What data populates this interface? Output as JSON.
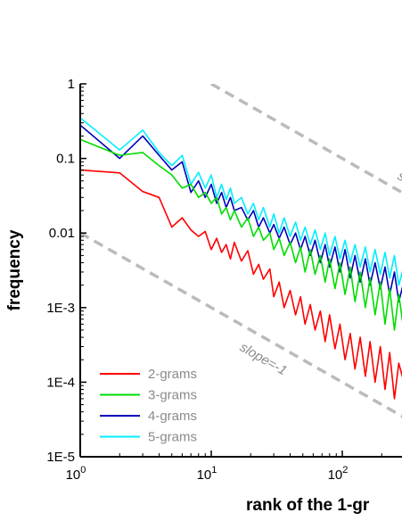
{
  "chart_data": {
    "type": "line",
    "title": "",
    "xlabel": "rank of the 1-gr",
    "ylabel": "frequency",
    "xscale": "log",
    "yscale": "log",
    "xlim": [
      1,
      330
    ],
    "ylim": [
      1e-05,
      1
    ],
    "x_ticks": [
      {
        "value": 1,
        "base": "10",
        "exp": "0"
      },
      {
        "value": 10,
        "base": "10",
        "exp": "1"
      },
      {
        "value": 100,
        "base": "10",
        "exp": "2"
      }
    ],
    "y_ticks": [
      {
        "value": 1,
        "label": "1"
      },
      {
        "value": 0.1,
        "label": "0.1"
      },
      {
        "value": 0.01,
        "label": "0.01"
      },
      {
        "value": 0.001,
        "label": "1E-3"
      },
      {
        "value": 0.0001,
        "label": "1E-4"
      },
      {
        "value": 1e-05,
        "label": "1E-5"
      }
    ],
    "grid": false,
    "legend_position": "bottom-left",
    "series": [
      {
        "name": "2-grams",
        "color": "#ff0000"
      },
      {
        "name": "3-grams",
        "color": "#00dd00"
      },
      {
        "name": "4-grams",
        "color": "#0000bb"
      },
      {
        "name": "5-grams",
        "color": "#00eeff"
      }
    ],
    "reference_lines": [
      {
        "label": "slope=-1",
        "slope": -1,
        "points": [
          [
            1,
            0.01
          ],
          [
            330,
            3.03e-05
          ]
        ],
        "color": "#bbbbbb",
        "style": "dashed"
      },
      {
        "label": "s",
        "slope": -1,
        "points": [
          [
            10,
            1
          ],
          [
            330,
            0.0303
          ]
        ],
        "color": "#bbbbbb",
        "style": "dashed"
      }
    ],
    "series_points": {
      "2-grams": [
        [
          1,
          0.07
        ],
        [
          2,
          0.064
        ],
        [
          3,
          0.036
        ],
        [
          4,
          0.03
        ],
        [
          5,
          0.012
        ],
        [
          6,
          0.016
        ],
        [
          7,
          0.011
        ],
        [
          8,
          0.009
        ],
        [
          9,
          0.0105
        ],
        [
          10,
          0.006
        ],
        [
          11,
          0.0085
        ],
        [
          12,
          0.0055
        ],
        [
          13,
          0.007
        ],
        [
          14,
          0.0045
        ],
        [
          15,
          0.0075
        ],
        [
          17,
          0.0042
        ],
        [
          19,
          0.0058
        ],
        [
          21,
          0.0028
        ],
        [
          23,
          0.0038
        ],
        [
          25,
          0.0024
        ],
        [
          28,
          0.0033
        ],
        [
          30,
          0.0014
        ],
        [
          33,
          0.0022
        ],
        [
          36,
          0.001
        ],
        [
          40,
          0.0017
        ],
        [
          44,
          0.0008
        ],
        [
          48,
          0.0014
        ],
        [
          52,
          0.0006
        ],
        [
          57,
          0.0011
        ],
        [
          62,
          0.0005
        ],
        [
          68,
          0.0009
        ],
        [
          74,
          0.00035
        ],
        [
          80,
          0.0008
        ],
        [
          88,
          0.00028
        ],
        [
          96,
          0.0006
        ],
        [
          105,
          0.0002
        ],
        [
          115,
          0.00045
        ],
        [
          125,
          0.00015
        ],
        [
          137,
          0.0004
        ],
        [
          150,
          0.00012
        ],
        [
          163,
          0.00035
        ],
        [
          178,
          0.0001
        ],
        [
          195,
          0.0003
        ],
        [
          212,
          8e-05
        ],
        [
          230,
          0.00025
        ],
        [
          250,
          6e-05
        ],
        [
          270,
          0.00018
        ],
        [
          300,
          9e-05
        ],
        [
          330,
          0.00015
        ]
      ],
      "3-grams": [
        [
          1,
          0.18
        ],
        [
          2,
          0.11
        ],
        [
          3,
          0.12
        ],
        [
          4,
          0.08
        ],
        [
          5,
          0.06
        ],
        [
          6,
          0.04
        ],
        [
          7,
          0.045
        ],
        [
          8,
          0.03
        ],
        [
          9,
          0.035
        ],
        [
          10,
          0.025
        ],
        [
          11,
          0.03
        ],
        [
          12,
          0.018
        ],
        [
          13,
          0.022
        ],
        [
          14,
          0.015
        ],
        [
          15,
          0.02
        ],
        [
          17,
          0.012
        ],
        [
          19,
          0.016
        ],
        [
          21,
          0.009
        ],
        [
          23,
          0.012
        ],
        [
          25,
          0.008
        ],
        [
          28,
          0.01
        ],
        [
          30,
          0.006
        ],
        [
          33,
          0.0085
        ],
        [
          36,
          0.005
        ],
        [
          40,
          0.0075
        ],
        [
          44,
          0.004
        ],
        [
          48,
          0.0065
        ],
        [
          52,
          0.003
        ],
        [
          57,
          0.006
        ],
        [
          62,
          0.0028
        ],
        [
          68,
          0.005
        ],
        [
          74,
          0.0022
        ],
        [
          80,
          0.0045
        ],
        [
          88,
          0.0018
        ],
        [
          96,
          0.004
        ],
        [
          105,
          0.0015
        ],
        [
          115,
          0.0035
        ],
        [
          125,
          0.0012
        ],
        [
          137,
          0.003
        ],
        [
          150,
          0.001
        ],
        [
          163,
          0.0025
        ],
        [
          178,
          0.0008
        ],
        [
          195,
          0.0022
        ],
        [
          212,
          0.0006
        ],
        [
          230,
          0.0018
        ],
        [
          250,
          0.0005
        ],
        [
          270,
          0.0015
        ],
        [
          300,
          0.0004
        ],
        [
          330,
          0.0012
        ]
      ],
      "4-grams": [
        [
          1,
          0.28
        ],
        [
          2,
          0.1
        ],
        [
          3,
          0.2
        ],
        [
          4,
          0.11
        ],
        [
          5,
          0.07
        ],
        [
          6,
          0.09
        ],
        [
          7,
          0.035
        ],
        [
          8,
          0.05
        ],
        [
          9,
          0.03
        ],
        [
          10,
          0.045
        ],
        [
          11,
          0.025
        ],
        [
          12,
          0.035
        ],
        [
          13,
          0.022
        ],
        [
          14,
          0.03
        ],
        [
          15,
          0.02
        ],
        [
          17,
          0.022
        ],
        [
          19,
          0.015
        ],
        [
          21,
          0.02
        ],
        [
          23,
          0.012
        ],
        [
          25,
          0.016
        ],
        [
          28,
          0.01
        ],
        [
          30,
          0.013
        ],
        [
          33,
          0.0085
        ],
        [
          36,
          0.012
        ],
        [
          40,
          0.007
        ],
        [
          44,
          0.01
        ],
        [
          48,
          0.006
        ],
        [
          52,
          0.009
        ],
        [
          57,
          0.005
        ],
        [
          62,
          0.008
        ],
        [
          68,
          0.004
        ],
        [
          74,
          0.007
        ],
        [
          80,
          0.0035
        ],
        [
          88,
          0.0065
        ],
        [
          96,
          0.003
        ],
        [
          105,
          0.006
        ],
        [
          115,
          0.0025
        ],
        [
          125,
          0.005
        ],
        [
          137,
          0.0022
        ],
        [
          150,
          0.0045
        ],
        [
          163,
          0.002
        ],
        [
          178,
          0.004
        ],
        [
          195,
          0.0018
        ],
        [
          212,
          0.0035
        ],
        [
          230,
          0.0015
        ],
        [
          250,
          0.003
        ],
        [
          270,
          0.0012
        ],
        [
          300,
          0.0025
        ],
        [
          330,
          0.002
        ]
      ],
      "5-grams": [
        [
          1,
          0.35
        ],
        [
          2,
          0.13
        ],
        [
          3,
          0.24
        ],
        [
          4,
          0.12
        ],
        [
          5,
          0.08
        ],
        [
          6,
          0.11
        ],
        [
          7,
          0.045
        ],
        [
          8,
          0.065
        ],
        [
          9,
          0.04
        ],
        [
          10,
          0.06
        ],
        [
          11,
          0.03
        ],
        [
          12,
          0.045
        ],
        [
          13,
          0.028
        ],
        [
          14,
          0.04
        ],
        [
          15,
          0.025
        ],
        [
          17,
          0.03
        ],
        [
          19,
          0.018
        ],
        [
          21,
          0.025
        ],
        [
          23,
          0.015
        ],
        [
          25,
          0.022
        ],
        [
          28,
          0.012
        ],
        [
          30,
          0.018
        ],
        [
          33,
          0.01
        ],
        [
          36,
          0.016
        ],
        [
          40,
          0.009
        ],
        [
          44,
          0.014
        ],
        [
          48,
          0.008
        ],
        [
          52,
          0.012
        ],
        [
          57,
          0.007
        ],
        [
          62,
          0.011
        ],
        [
          68,
          0.006
        ],
        [
          74,
          0.01
        ],
        [
          80,
          0.005
        ],
        [
          88,
          0.009
        ],
        [
          96,
          0.0045
        ],
        [
          105,
          0.008
        ],
        [
          115,
          0.004
        ],
        [
          125,
          0.007
        ],
        [
          137,
          0.0035
        ],
        [
          150,
          0.0065
        ],
        [
          163,
          0.003
        ],
        [
          178,
          0.006
        ],
        [
          195,
          0.0028
        ],
        [
          212,
          0.0055
        ],
        [
          230,
          0.0025
        ],
        [
          250,
          0.005
        ],
        [
          270,
          0.002
        ],
        [
          300,
          0.004
        ],
        [
          330,
          0.0035
        ]
      ]
    }
  }
}
